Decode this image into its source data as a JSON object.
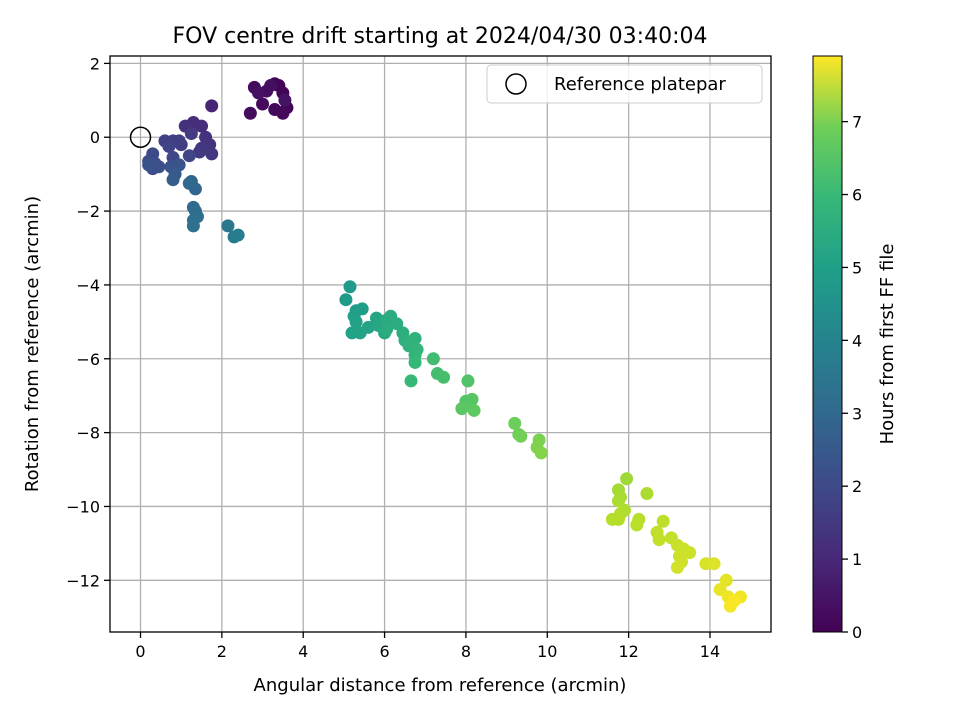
{
  "chart_data": {
    "type": "scatter",
    "title": "FOV centre drift starting at 2024/04/30 03:40:04",
    "xlabel": "Angular distance from reference (arcmin)",
    "ylabel": "Rotation from reference (arcmin)",
    "xlim": [
      -0.75,
      15.5
    ],
    "ylim": [
      -13.4,
      2.2
    ],
    "xticks": [
      0,
      2,
      4,
      6,
      8,
      10,
      12,
      14
    ],
    "yticks": [
      2,
      0,
      -2,
      -4,
      -6,
      -8,
      -10,
      -12
    ],
    "grid": true,
    "legend": {
      "position": "top-right",
      "entries": [
        "Reference platepar"
      ]
    },
    "reference_point": {
      "x": 0,
      "y": 0
    },
    "colorbar": {
      "label": "Hours from first FF file",
      "range": [
        0,
        7.9
      ],
      "ticks": [
        0,
        1,
        2,
        3,
        4,
        5,
        6,
        7
      ],
      "colormap": "viridis"
    },
    "points": [
      {
        "x": 3.4,
        "y": 1.4,
        "c": 0.05
      },
      {
        "x": 3.3,
        "y": 1.45,
        "c": 0.08
      },
      {
        "x": 3.5,
        "y": 1.2,
        "c": 0.1
      },
      {
        "x": 3.6,
        "y": 0.8,
        "c": 0.12
      },
      {
        "x": 3.5,
        "y": 0.65,
        "c": 0.15
      },
      {
        "x": 3.3,
        "y": 0.75,
        "c": 0.18
      },
      {
        "x": 3.0,
        "y": 0.9,
        "c": 0.2
      },
      {
        "x": 2.7,
        "y": 0.65,
        "c": 0.22
      },
      {
        "x": 2.8,
        "y": 1.35,
        "c": 0.25
      },
      {
        "x": 3.1,
        "y": 1.25,
        "c": 0.3
      },
      {
        "x": 3.2,
        "y": 1.4,
        "c": 0.32
      },
      {
        "x": 2.9,
        "y": 1.2,
        "c": 0.35
      },
      {
        "x": 3.55,
        "y": 1.0,
        "c": 0.4
      },
      {
        "x": 1.75,
        "y": 0.85,
        "c": 0.8
      },
      {
        "x": 1.3,
        "y": 0.4,
        "c": 1.0
      },
      {
        "x": 1.5,
        "y": 0.3,
        "c": 1.05
      },
      {
        "x": 1.1,
        "y": 0.3,
        "c": 1.1
      },
      {
        "x": 1.6,
        "y": 0.0,
        "c": 1.15
      },
      {
        "x": 1.7,
        "y": -0.2,
        "c": 1.2
      },
      {
        "x": 1.75,
        "y": -0.45,
        "c": 1.25
      },
      {
        "x": 1.5,
        "y": -0.3,
        "c": 1.3
      },
      {
        "x": 1.45,
        "y": -0.4,
        "c": 1.32
      },
      {
        "x": 1.25,
        "y": 0.1,
        "c": 1.35
      },
      {
        "x": 1.0,
        "y": -0.2,
        "c": 1.4
      },
      {
        "x": 0.8,
        "y": -0.1,
        "c": 1.45
      },
      {
        "x": 0.95,
        "y": -0.1,
        "c": 1.5
      },
      {
        "x": 0.6,
        "y": -0.1,
        "c": 1.55
      },
      {
        "x": 0.7,
        "y": -0.25,
        "c": 1.6
      },
      {
        "x": 1.2,
        "y": -0.5,
        "c": 1.65
      },
      {
        "x": 0.8,
        "y": -0.55,
        "c": 1.7
      },
      {
        "x": 0.3,
        "y": -0.45,
        "c": 1.75
      },
      {
        "x": 0.2,
        "y": -0.65,
        "c": 1.8
      },
      {
        "x": 0.35,
        "y": -0.7,
        "c": 1.85
      },
      {
        "x": 0.3,
        "y": -0.85,
        "c": 1.9
      },
      {
        "x": 0.45,
        "y": -0.8,
        "c": 1.95
      },
      {
        "x": 0.2,
        "y": -0.75,
        "c": 2.0
      },
      {
        "x": 0.75,
        "y": -0.8,
        "c": 2.05
      },
      {
        "x": 0.95,
        "y": -0.75,
        "c": 2.1
      },
      {
        "x": 0.85,
        "y": -1.0,
        "c": 2.2
      },
      {
        "x": 0.8,
        "y": -1.15,
        "c": 2.3
      },
      {
        "x": 1.25,
        "y": -1.2,
        "c": 2.5
      },
      {
        "x": 1.35,
        "y": -1.4,
        "c": 2.6
      },
      {
        "x": 1.2,
        "y": -1.25,
        "c": 2.65
      },
      {
        "x": 1.3,
        "y": -1.9,
        "c": 2.75
      },
      {
        "x": 1.35,
        "y": -2.0,
        "c": 2.8
      },
      {
        "x": 1.4,
        "y": -2.15,
        "c": 2.85
      },
      {
        "x": 1.3,
        "y": -2.25,
        "c": 2.9
      },
      {
        "x": 1.3,
        "y": -2.4,
        "c": 2.95
      },
      {
        "x": 2.15,
        "y": -2.4,
        "c": 3.15
      },
      {
        "x": 2.3,
        "y": -2.7,
        "c": 3.25
      },
      {
        "x": 2.4,
        "y": -2.65,
        "c": 3.3
      },
      {
        "x": 5.15,
        "y": -4.05,
        "c": 4.25
      },
      {
        "x": 5.05,
        "y": -4.4,
        "c": 4.3
      },
      {
        "x": 5.3,
        "y": -4.7,
        "c": 4.35
      },
      {
        "x": 5.45,
        "y": -4.65,
        "c": 4.4
      },
      {
        "x": 5.25,
        "y": -4.85,
        "c": 4.45
      },
      {
        "x": 5.3,
        "y": -5.0,
        "c": 4.5
      },
      {
        "x": 5.2,
        "y": -5.3,
        "c": 4.52
      },
      {
        "x": 5.4,
        "y": -5.3,
        "c": 4.55
      },
      {
        "x": 5.6,
        "y": -5.15,
        "c": 4.6
      },
      {
        "x": 5.8,
        "y": -4.9,
        "c": 4.65
      },
      {
        "x": 5.85,
        "y": -5.1,
        "c": 4.7
      },
      {
        "x": 6.0,
        "y": -5.3,
        "c": 4.75
      },
      {
        "x": 6.05,
        "y": -4.95,
        "c": 4.8
      },
      {
        "x": 6.15,
        "y": -4.85,
        "c": 4.85
      },
      {
        "x": 6.3,
        "y": -5.05,
        "c": 4.9
      },
      {
        "x": 6.05,
        "y": -5.2,
        "c": 4.92
      },
      {
        "x": 6.45,
        "y": -5.3,
        "c": 4.95
      },
      {
        "x": 6.5,
        "y": -5.5,
        "c": 5.0
      },
      {
        "x": 6.6,
        "y": -5.65,
        "c": 5.05
      },
      {
        "x": 6.75,
        "y": -5.45,
        "c": 5.1
      },
      {
        "x": 6.8,
        "y": -5.75,
        "c": 5.15
      },
      {
        "x": 6.75,
        "y": -5.9,
        "c": 5.2
      },
      {
        "x": 6.75,
        "y": -6.1,
        "c": 5.25
      },
      {
        "x": 6.65,
        "y": -6.6,
        "c": 5.3
      },
      {
        "x": 7.2,
        "y": -6.0,
        "c": 5.45
      },
      {
        "x": 7.3,
        "y": -6.4,
        "c": 5.5
      },
      {
        "x": 7.45,
        "y": -6.5,
        "c": 5.55
      },
      {
        "x": 8.05,
        "y": -6.6,
        "c": 5.7
      },
      {
        "x": 8.0,
        "y": -7.15,
        "c": 5.75
      },
      {
        "x": 8.15,
        "y": -7.1,
        "c": 5.8
      },
      {
        "x": 7.9,
        "y": -7.35,
        "c": 5.85
      },
      {
        "x": 8.2,
        "y": -7.4,
        "c": 5.9
      },
      {
        "x": 9.2,
        "y": -7.75,
        "c": 6.1
      },
      {
        "x": 9.3,
        "y": -8.05,
        "c": 6.15
      },
      {
        "x": 9.35,
        "y": -8.1,
        "c": 6.2
      },
      {
        "x": 9.8,
        "y": -8.2,
        "c": 6.3
      },
      {
        "x": 9.75,
        "y": -8.4,
        "c": 6.35
      },
      {
        "x": 9.85,
        "y": -8.55,
        "c": 6.4
      },
      {
        "x": 11.95,
        "y": -9.25,
        "c": 6.75
      },
      {
        "x": 11.75,
        "y": -9.55,
        "c": 6.8
      },
      {
        "x": 11.8,
        "y": -9.75,
        "c": 6.85
      },
      {
        "x": 11.75,
        "y": -9.85,
        "c": 6.9
      },
      {
        "x": 12.45,
        "y": -9.65,
        "c": 6.92
      },
      {
        "x": 11.9,
        "y": -10.1,
        "c": 6.95
      },
      {
        "x": 11.8,
        "y": -10.2,
        "c": 6.97
      },
      {
        "x": 11.6,
        "y": -10.35,
        "c": 7.0
      },
      {
        "x": 11.75,
        "y": -10.35,
        "c": 7.02
      },
      {
        "x": 12.25,
        "y": -10.35,
        "c": 7.05
      },
      {
        "x": 12.2,
        "y": -10.5,
        "c": 7.08
      },
      {
        "x": 12.85,
        "y": -10.4,
        "c": 7.1
      },
      {
        "x": 12.7,
        "y": -10.7,
        "c": 7.15
      },
      {
        "x": 12.75,
        "y": -10.9,
        "c": 7.18
      },
      {
        "x": 13.05,
        "y": -10.85,
        "c": 7.2
      },
      {
        "x": 13.2,
        "y": -11.05,
        "c": 7.25
      },
      {
        "x": 13.35,
        "y": -11.15,
        "c": 7.28
      },
      {
        "x": 13.5,
        "y": -11.25,
        "c": 7.3
      },
      {
        "x": 13.25,
        "y": -11.35,
        "c": 7.32
      },
      {
        "x": 13.3,
        "y": -11.5,
        "c": 7.35
      },
      {
        "x": 13.2,
        "y": -11.65,
        "c": 7.38
      },
      {
        "x": 13.9,
        "y": -11.55,
        "c": 7.45
      },
      {
        "x": 14.1,
        "y": -11.55,
        "c": 7.5
      },
      {
        "x": 14.4,
        "y": -12.0,
        "c": 7.6
      },
      {
        "x": 14.25,
        "y": -12.25,
        "c": 7.65
      },
      {
        "x": 14.45,
        "y": -12.45,
        "c": 7.7
      },
      {
        "x": 14.75,
        "y": -12.45,
        "c": 7.75
      },
      {
        "x": 14.5,
        "y": -12.7,
        "c": 7.8
      },
      {
        "x": 14.6,
        "y": -12.55,
        "c": 7.85
      }
    ]
  }
}
